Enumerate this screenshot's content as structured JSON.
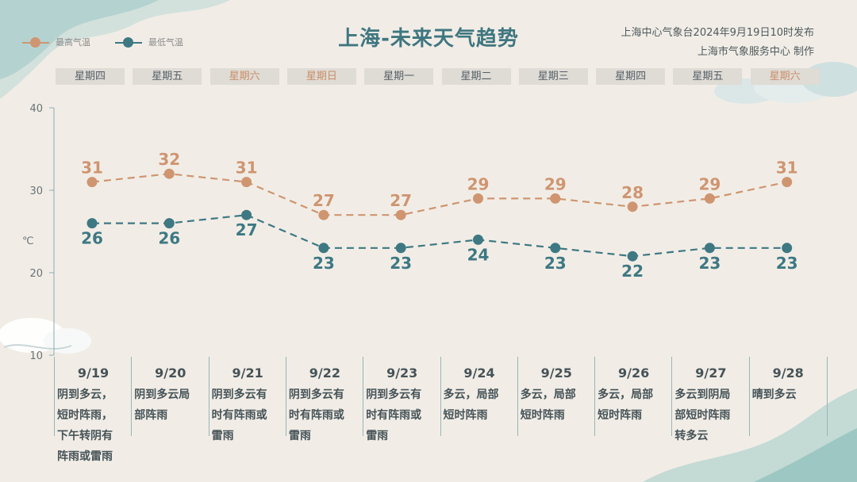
{
  "title": "上海-未来天气趋势",
  "publisher": {
    "line1": "上海中心气象台2024年9月19日10时发布",
    "line2": "上海市气象服务中心 制作"
  },
  "colors": {
    "high": "#cf9571",
    "low": "#3e7883",
    "axis": "#8eaab0",
    "text": "#465358"
  },
  "legend": [
    {
      "name": "最高气温",
      "color": "#cf9571"
    },
    {
      "name": "最低气温",
      "color": "#3e7883"
    }
  ],
  "weekdays": [
    "星期四",
    "星期五",
    "星期六",
    "星期日",
    "星期一",
    "星期二",
    "星期三",
    "星期四",
    "星期五",
    "星期六"
  ],
  "weekend_flags": [
    false,
    false,
    true,
    true,
    false,
    false,
    false,
    false,
    false,
    true
  ],
  "dates": [
    "9/19",
    "9/20",
    "9/21",
    "9/22",
    "9/23",
    "9/24",
    "9/25",
    "9/26",
    "9/27",
    "9/28"
  ],
  "weather": [
    "阴到多云，\n短时阵雨，\n下午转阴有\n阵雨或雷雨",
    "阴到多云局\n部阵雨",
    "阴到多云有\n时有阵雨或\n雷雨",
    "阴到多云有\n时有阵雨或\n雷雨",
    "阴到多云有\n时有阵雨或\n雷雨",
    "多云，局部\n短时阵雨",
    "多云，局部\n短时阵雨",
    "多云，局部\n短时阵雨",
    "多云到阴局\n部短时阵雨\n转多云",
    "晴到多云"
  ],
  "chart_data": {
    "type": "line",
    "categories": [
      "9/19",
      "9/20",
      "9/21",
      "9/22",
      "9/23",
      "9/24",
      "9/25",
      "9/26",
      "9/27",
      "9/28"
    ],
    "series": [
      {
        "name": "最高气温",
        "values": [
          31,
          32,
          31,
          27,
          27,
          29,
          29,
          28,
          29,
          31
        ]
      },
      {
        "name": "最低气温",
        "values": [
          26,
          26,
          27,
          23,
          23,
          24,
          23,
          22,
          23,
          23
        ]
      }
    ],
    "ylabel": "℃",
    "ylim": [
      10,
      40
    ],
    "yticks": [
      10,
      20,
      30,
      40
    ],
    "legend": "top-left"
  }
}
